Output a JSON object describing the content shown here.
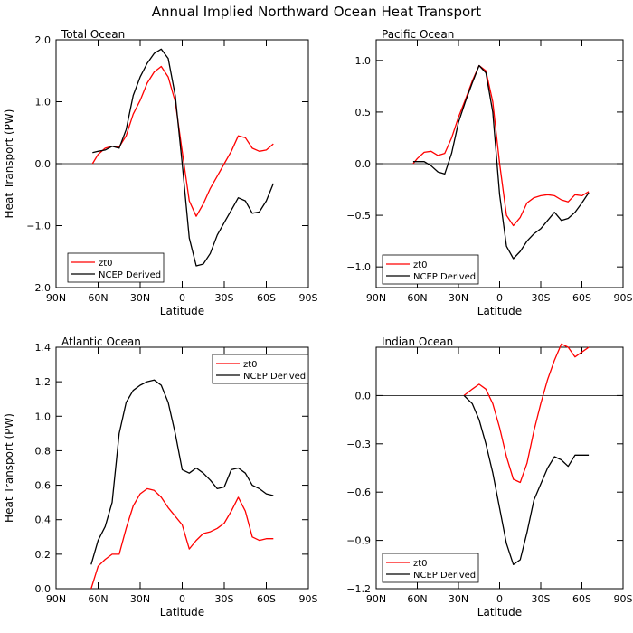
{
  "figure_title": "Annual Implied Northward Ocean Heat Transport",
  "colors": {
    "zt0": "#ff0000",
    "ncep": "#000000",
    "axis": "#000000",
    "zero_line": "#000000"
  },
  "chart_data": [
    {
      "type": "line",
      "title": "Total Ocean",
      "xlabel": "Latitude",
      "ylabel": "Heat Transport (PW)",
      "xlim": [
        90,
        -90
      ],
      "x_tick_values": [
        90,
        60,
        30,
        0,
        -30,
        -60,
        -90
      ],
      "x_tick_labels": [
        "90N",
        "60N",
        "30N",
        "0",
        "30S",
        "60S",
        "90S"
      ],
      "ylim": [
        -2.0,
        2.0
      ],
      "y_ticks": [
        -2.0,
        -1.0,
        0.0,
        1.0,
        2.0
      ],
      "y_tick_labels": [
        "−2.0",
        "−1.0",
        "0.0",
        "1.0",
        "2.0"
      ],
      "zero_line": true,
      "legend": {
        "position": "bottom-left",
        "entries": [
          "zt0",
          "NCEP Derived"
        ]
      },
      "series": [
        {
          "name": "zt0",
          "color": "#ff0000",
          "x": [
            64,
            60,
            55,
            50,
            45,
            40,
            35,
            30,
            25,
            20,
            15,
            10,
            5,
            0,
            -5,
            -10,
            -15,
            -20,
            -25,
            -30,
            -35,
            -40,
            -45,
            -50,
            -55,
            -60,
            -65
          ],
          "y": [
            0.0,
            0.15,
            0.25,
            0.28,
            0.27,
            0.45,
            0.8,
            1.02,
            1.3,
            1.48,
            1.57,
            1.4,
            1.0,
            0.2,
            -0.6,
            -0.85,
            -0.65,
            -0.4,
            -0.2,
            0.0,
            0.2,
            0.45,
            0.42,
            0.25,
            0.2,
            0.22,
            0.32
          ]
        },
        {
          "name": "NCEP Derived",
          "color": "#000000",
          "x": [
            64,
            60,
            55,
            50,
            45,
            40,
            35,
            30,
            25,
            20,
            15,
            10,
            5,
            0,
            -5,
            -10,
            -15,
            -20,
            -25,
            -30,
            -35,
            -40,
            -45,
            -50,
            -55,
            -60,
            -65
          ],
          "y": [
            0.18,
            0.2,
            0.22,
            0.28,
            0.25,
            0.55,
            1.1,
            1.4,
            1.62,
            1.78,
            1.85,
            1.7,
            1.1,
            0.0,
            -1.2,
            -1.65,
            -1.62,
            -1.45,
            -1.15,
            -0.95,
            -0.75,
            -0.55,
            -0.6,
            -0.8,
            -0.78,
            -0.6,
            -0.32
          ]
        }
      ]
    },
    {
      "type": "line",
      "title": "Pacific Ocean",
      "xlabel": "Latitude",
      "ylabel": "",
      "xlim": [
        90,
        -90
      ],
      "x_tick_values": [
        90,
        60,
        30,
        0,
        -30,
        -60,
        -90
      ],
      "x_tick_labels": [
        "90N",
        "60N",
        "30N",
        "0",
        "30S",
        "60S",
        "90S"
      ],
      "ylim": [
        -1.2,
        1.2
      ],
      "y_ticks": [
        -1.0,
        -0.5,
        0.0,
        0.5,
        1.0
      ],
      "y_tick_labels": [
        "−1.0",
        "−0.5",
        "0.0",
        "0.5",
        "1.0"
      ],
      "zero_line": true,
      "legend": {
        "position": "bottom-left",
        "entries": [
          "zt0",
          "NCEP Derived"
        ]
      },
      "series": [
        {
          "name": "zt0",
          "color": "#ff0000",
          "x": [
            63,
            60,
            55,
            50,
            45,
            40,
            35,
            30,
            25,
            20,
            15,
            10,
            5,
            0,
            -5,
            -10,
            -15,
            -20,
            -25,
            -30,
            -35,
            -40,
            -45,
            -50,
            -55,
            -60,
            -65
          ],
          "y": [
            0.0,
            0.05,
            0.11,
            0.12,
            0.08,
            0.1,
            0.25,
            0.45,
            0.62,
            0.8,
            0.95,
            0.9,
            0.6,
            0.0,
            -0.5,
            -0.6,
            -0.52,
            -0.38,
            -0.33,
            -0.31,
            -0.3,
            -0.31,
            -0.35,
            -0.37,
            -0.3,
            -0.31,
            -0.27
          ]
        },
        {
          "name": "NCEP Derived",
          "color": "#000000",
          "x": [
            63,
            60,
            55,
            50,
            45,
            40,
            35,
            30,
            25,
            20,
            15,
            10,
            5,
            0,
            -5,
            -10,
            -15,
            -20,
            -25,
            -30,
            -35,
            -40,
            -45,
            -50,
            -55,
            -60,
            -65
          ],
          "y": [
            0.02,
            0.02,
            0.02,
            -0.02,
            -0.08,
            -0.1,
            0.1,
            0.4,
            0.6,
            0.78,
            0.95,
            0.88,
            0.5,
            -0.3,
            -0.8,
            -0.92,
            -0.85,
            -0.75,
            -0.68,
            -0.63,
            -0.55,
            -0.47,
            -0.55,
            -0.53,
            -0.47,
            -0.38,
            -0.28
          ]
        }
      ]
    },
    {
      "type": "line",
      "title": "Atlantic Ocean",
      "xlabel": "Latitude",
      "ylabel": "Heat Transport (PW)",
      "xlim": [
        90,
        -90
      ],
      "x_tick_values": [
        90,
        60,
        30,
        0,
        -30,
        -60,
        -90
      ],
      "x_tick_labels": [
        "90N",
        "60N",
        "30N",
        "0",
        "30S",
        "60S",
        "90S"
      ],
      "ylim": [
        0.0,
        1.4
      ],
      "y_ticks": [
        0.0,
        0.2,
        0.4,
        0.6,
        0.8,
        1.0,
        1.2,
        1.4
      ],
      "y_tick_labels": [
        "0.0",
        "0.2",
        "0.4",
        "0.6",
        "0.8",
        "1.0",
        "1.2",
        "1.4"
      ],
      "zero_line": false,
      "legend": {
        "position": "top-right",
        "entries": [
          "zt0",
          "NCEP Derived"
        ]
      },
      "series": [
        {
          "name": "zt0",
          "color": "#ff0000",
          "x": [
            65,
            60,
            55,
            50,
            45,
            40,
            35,
            30,
            25,
            20,
            15,
            10,
            5,
            0,
            -5,
            -10,
            -15,
            -20,
            -25,
            -30,
            -35,
            -40,
            -45,
            -50,
            -55,
            -60,
            -65
          ],
          "y": [
            0.0,
            0.13,
            0.17,
            0.2,
            0.2,
            0.35,
            0.48,
            0.55,
            0.58,
            0.57,
            0.53,
            0.47,
            0.42,
            0.37,
            0.23,
            0.28,
            0.32,
            0.33,
            0.35,
            0.38,
            0.45,
            0.53,
            0.45,
            0.3,
            0.28,
            0.29,
            0.29
          ]
        },
        {
          "name": "NCEP Derived",
          "color": "#000000",
          "x": [
            65,
            60,
            55,
            50,
            45,
            40,
            35,
            30,
            25,
            20,
            15,
            10,
            5,
            0,
            -5,
            -10,
            -15,
            -20,
            -25,
            -30,
            -35,
            -40,
            -45,
            -50,
            -55,
            -60,
            -65
          ],
          "y": [
            0.14,
            0.28,
            0.36,
            0.5,
            0.9,
            1.08,
            1.15,
            1.18,
            1.2,
            1.21,
            1.18,
            1.08,
            0.9,
            0.69,
            0.67,
            0.7,
            0.67,
            0.63,
            0.58,
            0.59,
            0.69,
            0.7,
            0.67,
            0.6,
            0.58,
            0.55,
            0.54
          ]
        }
      ]
    },
    {
      "type": "line",
      "title": "Indian Ocean",
      "xlabel": "Latitude",
      "ylabel": "",
      "xlim": [
        90,
        -90
      ],
      "x_tick_values": [
        90,
        60,
        30,
        0,
        -30,
        -60,
        -90
      ],
      "x_tick_labels": [
        "90N",
        "60N",
        "30N",
        "0",
        "30S",
        "60S",
        "90S"
      ],
      "ylim": [
        -1.2,
        0.3
      ],
      "y_ticks": [
        -1.2,
        -0.9,
        -0.6,
        -0.3,
        0.0
      ],
      "y_tick_labels": [
        "−1.2",
        "−0.9",
        "−0.6",
        "−0.3",
        "0.0"
      ],
      "zero_line": true,
      "legend": {
        "position": "bottom-left",
        "entries": [
          "zt0",
          "NCEP Derived"
        ]
      },
      "series": [
        {
          "name": "zt0",
          "color": "#ff0000",
          "x": [
            26,
            20,
            15,
            10,
            5,
            0,
            -5,
            -10,
            -15,
            -20,
            -25,
            -30,
            -35,
            -40,
            -45,
            -50,
            -55,
            -60,
            -65
          ],
          "y": [
            0.0,
            0.04,
            0.07,
            0.04,
            -0.05,
            -0.2,
            -0.38,
            -0.52,
            -0.54,
            -0.42,
            -0.22,
            -0.05,
            0.1,
            0.22,
            0.32,
            0.3,
            0.24,
            0.27,
            0.3
          ]
        },
        {
          "name": "NCEP Derived",
          "color": "#000000",
          "x": [
            26,
            20,
            15,
            10,
            5,
            0,
            -5,
            -10,
            -15,
            -20,
            -25,
            -30,
            -35,
            -40,
            -45,
            -50,
            -55,
            -60,
            -65
          ],
          "y": [
            0.0,
            -0.05,
            -0.15,
            -0.3,
            -0.48,
            -0.7,
            -0.92,
            -1.05,
            -1.02,
            -0.85,
            -0.65,
            -0.55,
            -0.45,
            -0.38,
            -0.4,
            -0.44,
            -0.37,
            -0.37,
            -0.37
          ]
        }
      ]
    }
  ]
}
